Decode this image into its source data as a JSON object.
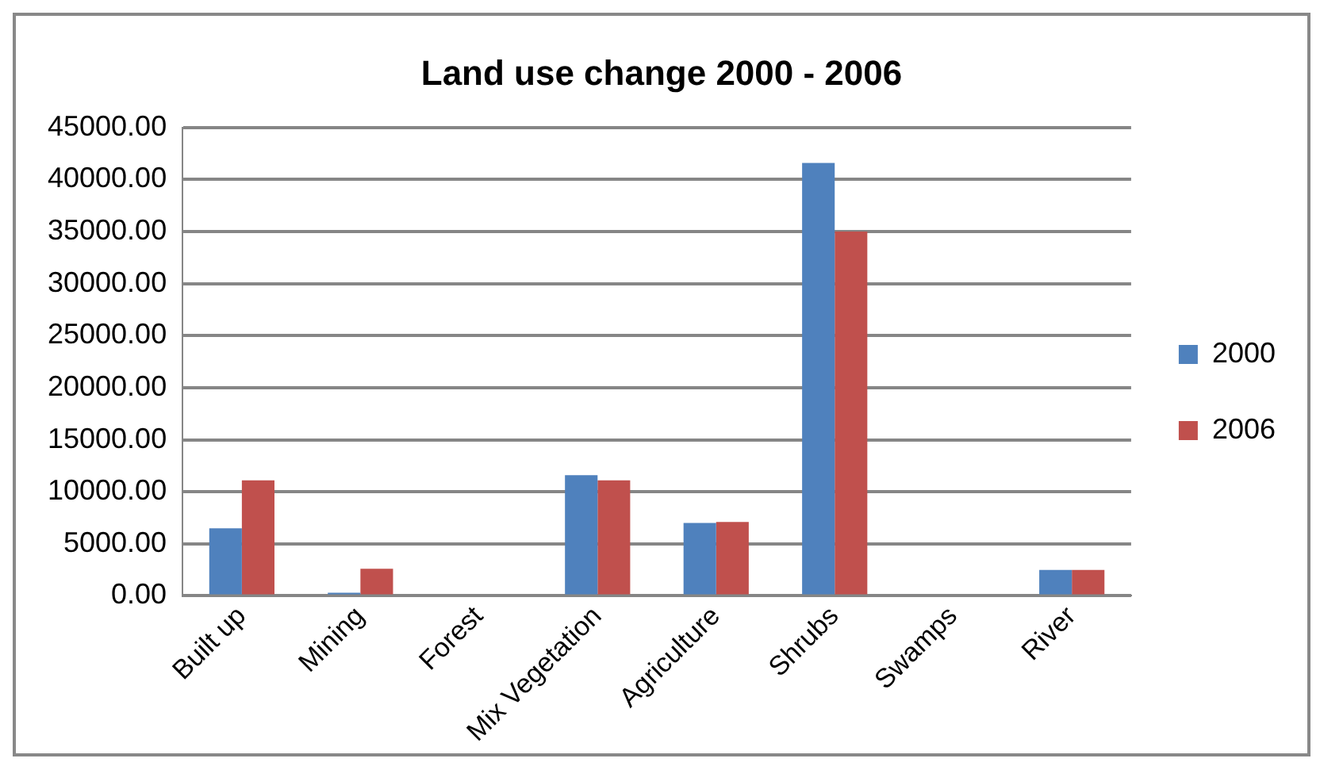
{
  "chart_data": {
    "type": "bar",
    "title": "Land use change 2000 - 2006",
    "categories": [
      "Built up",
      "Mining",
      "Forest",
      "Mix Vegetation",
      "Agriculture",
      "Shrubs",
      "Swamps",
      "River"
    ],
    "series": [
      {
        "name": "2000",
        "color": "#4f81bd",
        "values": [
          6500,
          300,
          null,
          11600,
          7000,
          41600,
          null,
          2500
        ]
      },
      {
        "name": "2006",
        "color": "#c0504d",
        "values": [
          11100,
          2600,
          null,
          11100,
          7100,
          35000,
          null,
          2500
        ]
      }
    ],
    "ylim": [
      0,
      45000
    ],
    "yticks": [
      {
        "value": 0,
        "label": "0.00"
      },
      {
        "value": 5000,
        "label": "5000.00"
      },
      {
        "value": 10000,
        "label": "10000.00"
      },
      {
        "value": 15000,
        "label": "15000.00"
      },
      {
        "value": 20000,
        "label": "20000.00"
      },
      {
        "value": 25000,
        "label": "25000.00"
      },
      {
        "value": 30000,
        "label": "30000.00"
      },
      {
        "value": 35000,
        "label": "35000.00"
      },
      {
        "value": 40000,
        "label": "40000.00"
      },
      {
        "value": 45000,
        "label": "45000.00"
      }
    ],
    "grid": "y",
    "legend": "right"
  }
}
